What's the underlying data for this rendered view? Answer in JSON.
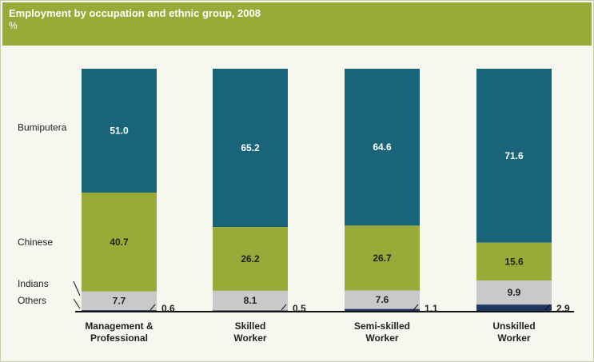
{
  "chart_data": {
    "type": "bar",
    "stacked": true,
    "percent_stacked": true,
    "title": "Employment by occupation and ethnic group, 2008",
    "unit": "%",
    "categories": [
      "Management & Professional",
      "Skilled Worker",
      "Semi-skilled Worker",
      "Unskilled Worker"
    ],
    "category_lines": [
      [
        "Management &",
        "Professional"
      ],
      [
        "Skilled",
        "Worker"
      ],
      [
        "Semi-skilled",
        "Worker"
      ],
      [
        "Unskilled",
        "Worker"
      ]
    ],
    "series": [
      {
        "name": "Others",
        "values": [
          0.6,
          0.5,
          1.1,
          2.9
        ],
        "color": "#1f3660",
        "label_color": "#222222",
        "label_position": "outside-right"
      },
      {
        "name": "Indians",
        "values": [
          7.7,
          8.1,
          7.6,
          9.9
        ],
        "color": "#c9c9c9",
        "label_color": "#222222",
        "label_position": "inside"
      },
      {
        "name": "Chinese",
        "values": [
          40.7,
          26.2,
          26.7,
          15.6
        ],
        "color": "#9aaa38",
        "label_color": "#222222",
        "label_position": "inside"
      },
      {
        "name": "Bumiputera",
        "values": [
          51.0,
          65.2,
          64.6,
          71.6
        ],
        "color": "#1a6479",
        "label_color": "#ffffff",
        "label_position": "inside"
      }
    ],
    "ylim": [
      0,
      100
    ],
    "grid": false,
    "legend": "left labels"
  },
  "colors": {
    "header_bg": "#9aaa38",
    "panel_bg": "#f6f7ef",
    "border": "#c9cfa8"
  }
}
